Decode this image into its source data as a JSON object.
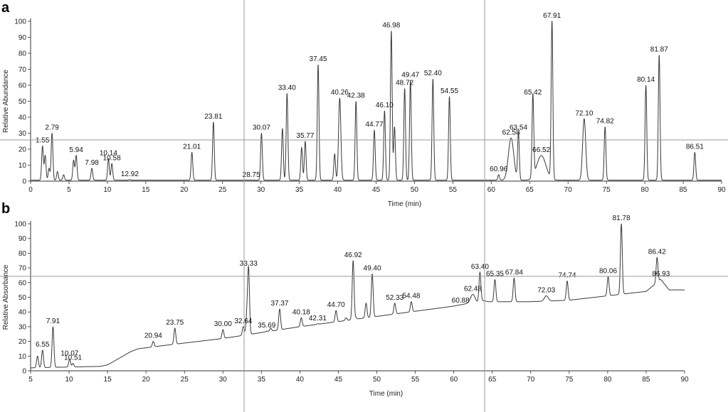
{
  "chart_data": [
    {
      "type": "line",
      "panel": "a",
      "xlabel": "Time (min)",
      "ylabel": "Relative Abundance",
      "xlim": [
        0,
        90
      ],
      "ylim": [
        0,
        100
      ],
      "xticks": [
        0,
        5,
        10,
        15,
        20,
        25,
        30,
        35,
        40,
        45,
        50,
        55,
        60,
        65,
        70,
        75,
        80,
        85,
        90
      ],
      "yticks": [
        0,
        10,
        20,
        30,
        40,
        50,
        60,
        70,
        80,
        90,
        100
      ],
      "peaks": [
        {
          "x": 1.55,
          "y": 22,
          "label": "1.55"
        },
        {
          "x": 2.79,
          "y": 30,
          "label": "2.79"
        },
        {
          "x": 5.94,
          "y": 16,
          "label": "5.94"
        },
        {
          "x": 7.98,
          "y": 8,
          "label": "7.98"
        },
        {
          "x": 10.14,
          "y": 14,
          "label": "10.14"
        },
        {
          "x": 10.58,
          "y": 11,
          "label": "10.58"
        },
        {
          "x": 12.92,
          "y": 1,
          "label": "12.92"
        },
        {
          "x": 21.01,
          "y": 18,
          "label": "21.01"
        },
        {
          "x": 23.81,
          "y": 37,
          "label": "23.81"
        },
        {
          "x": 28.75,
          "y": 0.5,
          "label": "28.75"
        },
        {
          "x": 30.07,
          "y": 30,
          "label": "30.07"
        },
        {
          "x": 33.4,
          "y": 55,
          "label": "33.40"
        },
        {
          "x": 35.77,
          "y": 25,
          "label": "35.77"
        },
        {
          "x": 37.45,
          "y": 73,
          "label": "37.45"
        },
        {
          "x": 40.26,
          "y": 52,
          "label": "40.26"
        },
        {
          "x": 42.38,
          "y": 50,
          "label": "42.38"
        },
        {
          "x": 44.77,
          "y": 32,
          "label": "44.77"
        },
        {
          "x": 46.1,
          "y": 44,
          "label": "46.10"
        },
        {
          "x": 46.98,
          "y": 94,
          "label": "46.98"
        },
        {
          "x": 48.72,
          "y": 58,
          "label": "48.72"
        },
        {
          "x": 49.47,
          "y": 63,
          "label": "49.47"
        },
        {
          "x": 52.4,
          "y": 64,
          "label": "52.40"
        },
        {
          "x": 54.55,
          "y": 53,
          "label": "54.55"
        },
        {
          "x": 60.96,
          "y": 4,
          "label": "60.96"
        },
        {
          "x": 62.58,
          "y": 27,
          "label": "62.58"
        },
        {
          "x": 63.54,
          "y": 30,
          "label": "63.54"
        },
        {
          "x": 65.42,
          "y": 52,
          "label": "65.42"
        },
        {
          "x": 66.52,
          "y": 16,
          "label": "66.52"
        },
        {
          "x": 67.91,
          "y": 100,
          "label": "67.91"
        },
        {
          "x": 72.1,
          "y": 39,
          "label": "72.10"
        },
        {
          "x": 74.82,
          "y": 34,
          "label": "74.82"
        },
        {
          "x": 80.14,
          "y": 60,
          "label": "80.14"
        },
        {
          "x": 81.87,
          "y": 79,
          "label": "81.87"
        },
        {
          "x": 86.51,
          "y": 18,
          "label": "86.51"
        }
      ],
      "minor_peaks": [
        {
          "x": 1.9,
          "y": 16
        },
        {
          "x": 2.4,
          "y": 8
        },
        {
          "x": 3.5,
          "y": 6
        },
        {
          "x": 4.3,
          "y": 4
        },
        {
          "x": 5.6,
          "y": 13
        },
        {
          "x": 32.8,
          "y": 33
        },
        {
          "x": 35.3,
          "y": 21
        },
        {
          "x": 39.6,
          "y": 17
        },
        {
          "x": 47.4,
          "y": 34
        }
      ]
    },
    {
      "type": "line",
      "panel": "b",
      "xlabel": "Time (min)",
      "ylabel": "Relative Absorbance",
      "xlim": [
        5,
        90
      ],
      "ylim": [
        0,
        100
      ],
      "xticks": [
        5,
        10,
        15,
        20,
        25,
        30,
        35,
        40,
        45,
        50,
        55,
        60,
        65,
        70,
        75,
        80,
        85,
        90
      ],
      "yticks": [
        0,
        10,
        20,
        30,
        40,
        50,
        60,
        70,
        80,
        90,
        100
      ],
      "baseline": [
        [
          5,
          2
        ],
        [
          14,
          3
        ],
        [
          15,
          4
        ],
        [
          17,
          10
        ],
        [
          18,
          13
        ],
        [
          19,
          15
        ],
        [
          22,
          17
        ],
        [
          30,
          22
        ],
        [
          40,
          30
        ],
        [
          50,
          37
        ],
        [
          60,
          44
        ],
        [
          62,
          46
        ],
        [
          63,
          46
        ],
        [
          63.6,
          48
        ],
        [
          64.5,
          47
        ],
        [
          67,
          47
        ],
        [
          70,
          47
        ],
        [
          75,
          48
        ],
        [
          80,
          51
        ],
        [
          85,
          54
        ],
        [
          86.9,
          62
        ],
        [
          88,
          55
        ],
        [
          90,
          55
        ]
      ],
      "peaks": [
        {
          "x": 6.55,
          "y": 14,
          "label": "6.55"
        },
        {
          "x": 7.91,
          "y": 30,
          "label": "7.91"
        },
        {
          "x": 10.07,
          "y": 8,
          "label": "10.07"
        },
        {
          "x": 10.51,
          "y": 5,
          "label": "10.51"
        },
        {
          "x": 20.94,
          "y": 20,
          "label": "20.94"
        },
        {
          "x": 23.75,
          "y": 29,
          "label": "23.75"
        },
        {
          "x": 30.0,
          "y": 28,
          "label": "30.00"
        },
        {
          "x": 32.64,
          "y": 30,
          "label": "32.64"
        },
        {
          "x": 33.33,
          "y": 69,
          "label": "33.33"
        },
        {
          "x": 35.69,
          "y": 27,
          "label": "35.69"
        },
        {
          "x": 37.37,
          "y": 42,
          "label": "37.37"
        },
        {
          "x": 40.18,
          "y": 36,
          "label": "40.18"
        },
        {
          "x": 42.31,
          "y": 32,
          "label": "42.31"
        },
        {
          "x": 44.7,
          "y": 41,
          "label": "44.70"
        },
        {
          "x": 46.92,
          "y": 75,
          "label": "46.92"
        },
        {
          "x": 49.4,
          "y": 66,
          "label": "49.40"
        },
        {
          "x": 52.33,
          "y": 46,
          "label": "52.33"
        },
        {
          "x": 54.48,
          "y": 47,
          "label": "54.48"
        },
        {
          "x": 60.88,
          "y": 44,
          "label": "60.88"
        },
        {
          "x": 62.48,
          "y": 52,
          "label": "62.48"
        },
        {
          "x": 63.4,
          "y": 67,
          "label": "63.40"
        },
        {
          "x": 65.35,
          "y": 62,
          "label": "65.35"
        },
        {
          "x": 67.84,
          "y": 63,
          "label": "67.84"
        },
        {
          "x": 72.03,
          "y": 51,
          "label": "72.03"
        },
        {
          "x": 74.74,
          "y": 61,
          "label": "74.74"
        },
        {
          "x": 80.06,
          "y": 64,
          "label": "80.06"
        },
        {
          "x": 81.78,
          "y": 100,
          "label": "81.78"
        },
        {
          "x": 86.42,
          "y": 77,
          "label": "86.42"
        },
        {
          "x": 86.93,
          "y": 62,
          "label": "86.93"
        }
      ],
      "minor_peaks": [
        {
          "x": 5.9,
          "y": 10
        },
        {
          "x": 33.1,
          "y": 37
        },
        {
          "x": 36.2,
          "y": 29
        },
        {
          "x": 46.0,
          "y": 36
        },
        {
          "x": 48.6,
          "y": 46
        },
        {
          "x": 47.3,
          "y": 36
        }
      ]
    }
  ]
}
